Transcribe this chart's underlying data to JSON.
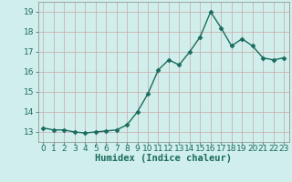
{
  "x": [
    0,
    1,
    2,
    3,
    4,
    5,
    6,
    7,
    8,
    9,
    10,
    11,
    12,
    13,
    14,
    15,
    16,
    17,
    18,
    19,
    20,
    21,
    22,
    23
  ],
  "y": [
    13.2,
    13.1,
    13.1,
    13.0,
    12.95,
    13.0,
    13.05,
    13.1,
    13.35,
    14.0,
    14.9,
    16.1,
    16.6,
    16.35,
    17.0,
    17.75,
    19.0,
    18.2,
    17.3,
    17.65,
    17.3,
    16.7,
    16.6,
    16.7
  ],
  "line_color": "#1a6b5e",
  "marker": "D",
  "marker_size": 2.5,
  "bg_color": "#d0eeeb",
  "grid_color": "#c8a8a8",
  "xlabel": "Humidex (Indice chaleur)",
  "xlim": [
    -0.5,
    23.5
  ],
  "ylim": [
    12.5,
    19.5
  ],
  "yticks": [
    13,
    14,
    15,
    16,
    17,
    18,
    19
  ],
  "xticks": [
    0,
    1,
    2,
    3,
    4,
    5,
    6,
    7,
    8,
    9,
    10,
    11,
    12,
    13,
    14,
    15,
    16,
    17,
    18,
    19,
    20,
    21,
    22,
    23
  ],
  "xlabel_fontsize": 7.5,
  "tick_fontsize": 6.5,
  "linewidth": 1.0
}
